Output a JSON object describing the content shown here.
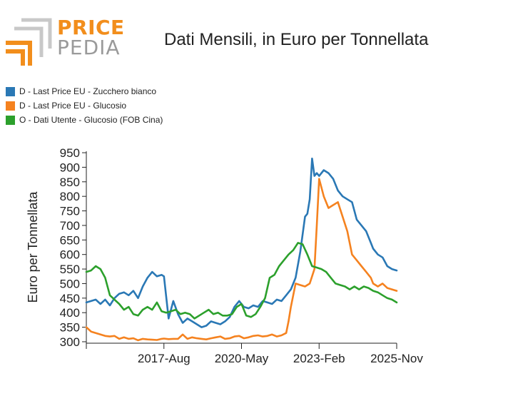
{
  "logo": {
    "word1": "PRICE",
    "word2": "PEDIA"
  },
  "chart_data": {
    "type": "line",
    "title": "Dati Mensili, in Euro per Tonnellata",
    "ylabel": "Euro per Tonnellata",
    "xlabel": "",
    "ylim": [
      295,
      955
    ],
    "yticks": [
      300,
      350,
      400,
      450,
      500,
      550,
      600,
      650,
      700,
      750,
      800,
      850,
      900,
      950
    ],
    "xlim": [
      "2014-11",
      "2025-11"
    ],
    "xticks": [
      {
        "date": "2017-08",
        "label": "2017-Aug"
      },
      {
        "date": "2020-05",
        "label": "2020-May"
      },
      {
        "date": "2023-02",
        "label": "2023-Feb"
      },
      {
        "date": "2025-11",
        "label": "2025-Nov"
      }
    ],
    "grid": false,
    "legend_position": "top-left",
    "series": [
      {
        "name": "D - Last Price EU - Zucchero bianco",
        "color": "#2a78b5",
        "x": [
          "2014-11",
          "2015-01",
          "2015-03",
          "2015-05",
          "2015-07",
          "2015-09",
          "2015-11",
          "2016-01",
          "2016-03",
          "2016-05",
          "2016-07",
          "2016-09",
          "2016-11",
          "2017-01",
          "2017-03",
          "2017-05",
          "2017-07",
          "2017-08",
          "2017-10",
          "2017-12",
          "2018-02",
          "2018-04",
          "2018-06",
          "2018-08",
          "2018-10",
          "2018-12",
          "2019-02",
          "2019-04",
          "2019-06",
          "2019-08",
          "2019-10",
          "2019-12",
          "2020-02",
          "2020-04",
          "2020-06",
          "2020-08",
          "2020-10",
          "2020-12",
          "2021-02",
          "2021-04",
          "2021-06",
          "2021-08",
          "2021-10",
          "2021-12",
          "2022-02",
          "2022-04",
          "2022-06",
          "2022-08",
          "2022-09",
          "2022-10",
          "2022-11",
          "2022-12",
          "2023-01",
          "2023-02",
          "2023-04",
          "2023-06",
          "2023-08",
          "2023-10",
          "2023-12",
          "2024-02",
          "2024-04",
          "2024-06",
          "2024-08",
          "2024-10",
          "2024-12",
          "2025-01",
          "2025-03",
          "2025-05",
          "2025-07",
          "2025-09",
          "2025-11"
        ],
        "values": [
          435,
          440,
          445,
          430,
          445,
          425,
          450,
          465,
          470,
          460,
          475,
          450,
          490,
          520,
          540,
          525,
          530,
          525,
          380,
          440,
          395,
          365,
          380,
          370,
          360,
          350,
          355,
          370,
          365,
          360,
          370,
          385,
          420,
          440,
          420,
          415,
          425,
          420,
          440,
          435,
          430,
          445,
          440,
          460,
          480,
          520,
          610,
          730,
          740,
          790,
          930,
          870,
          880,
          870,
          890,
          880,
          860,
          820,
          800,
          790,
          780,
          720,
          700,
          680,
          640,
          620,
          600,
          590,
          560,
          550,
          545
        ]
      },
      {
        "name": "D - Last Price EU - Glucosio",
        "color": "#f5821f",
        "x": [
          "2014-11",
          "2015-01",
          "2015-03",
          "2015-05",
          "2015-07",
          "2015-09",
          "2015-11",
          "2016-01",
          "2016-03",
          "2016-05",
          "2016-07",
          "2016-09",
          "2016-11",
          "2017-01",
          "2017-03",
          "2017-05",
          "2017-07",
          "2017-08",
          "2017-10",
          "2017-12",
          "2018-02",
          "2018-04",
          "2018-06",
          "2018-08",
          "2018-10",
          "2018-12",
          "2019-02",
          "2019-04",
          "2019-06",
          "2019-08",
          "2019-10",
          "2019-12",
          "2020-02",
          "2020-04",
          "2020-06",
          "2020-08",
          "2020-10",
          "2020-12",
          "2021-02",
          "2021-04",
          "2021-06",
          "2021-08",
          "2021-10",
          "2021-12",
          "2022-01",
          "2022-02",
          "2022-04",
          "2022-06",
          "2022-08",
          "2022-10",
          "2022-12",
          "2023-01",
          "2023-02",
          "2023-04",
          "2023-06",
          "2023-08",
          "2023-10",
          "2023-12",
          "2024-02",
          "2024-04",
          "2024-06",
          "2024-08",
          "2024-10",
          "2024-12",
          "2025-01",
          "2025-03",
          "2025-05",
          "2025-07",
          "2025-09",
          "2025-11"
        ],
        "values": [
          350,
          335,
          330,
          325,
          320,
          318,
          320,
          310,
          315,
          310,
          312,
          305,
          310,
          308,
          307,
          306,
          310,
          311,
          309,
          310,
          310,
          325,
          310,
          315,
          312,
          310,
          308,
          312,
          315,
          318,
          310,
          312,
          318,
          320,
          312,
          315,
          320,
          322,
          318,
          320,
          325,
          318,
          322,
          330,
          370,
          420,
          500,
          495,
          490,
          500,
          550,
          700,
          860,
          800,
          760,
          770,
          780,
          730,
          680,
          600,
          580,
          560,
          540,
          520,
          500,
          490,
          500,
          485,
          480,
          475
        ]
      },
      {
        "name": "O - Dati Utente - Glucosio (FOB Cina)",
        "color": "#2ca02c",
        "x": [
          "2014-11",
          "2015-01",
          "2015-03",
          "2015-05",
          "2015-07",
          "2015-09",
          "2015-11",
          "2016-01",
          "2016-03",
          "2016-05",
          "2016-07",
          "2016-09",
          "2016-11",
          "2017-01",
          "2017-03",
          "2017-05",
          "2017-07",
          "2017-09",
          "2017-11",
          "2018-01",
          "2018-03",
          "2018-05",
          "2018-07",
          "2018-09",
          "2018-11",
          "2019-01",
          "2019-03",
          "2019-05",
          "2019-07",
          "2019-09",
          "2019-11",
          "2020-01",
          "2020-03",
          "2020-05",
          "2020-07",
          "2020-09",
          "2020-11",
          "2021-01",
          "2021-03",
          "2021-05",
          "2021-07",
          "2021-09",
          "2021-11",
          "2022-01",
          "2022-03",
          "2022-05",
          "2022-07",
          "2022-09",
          "2022-11",
          "2023-01",
          "2023-03",
          "2023-05",
          "2023-07",
          "2023-09",
          "2023-11",
          "2024-01",
          "2024-03",
          "2024-05",
          "2024-07",
          "2024-09",
          "2024-11",
          "2025-01",
          "2025-03",
          "2025-05",
          "2025-07",
          "2025-09",
          "2025-11"
        ],
        "values": [
          540,
          545,
          560,
          550,
          520,
          460,
          445,
          430,
          410,
          420,
          395,
          390,
          410,
          420,
          410,
          435,
          405,
          400,
          405,
          410,
          395,
          400,
          395,
          380,
          390,
          400,
          410,
          395,
          400,
          390,
          390,
          395,
          420,
          430,
          390,
          385,
          395,
          420,
          450,
          520,
          530,
          560,
          580,
          600,
          615,
          640,
          635,
          600,
          560,
          555,
          550,
          540,
          520,
          500,
          495,
          490,
          480,
          490,
          480,
          490,
          485,
          475,
          470,
          460,
          450,
          445,
          435
        ]
      }
    ]
  }
}
